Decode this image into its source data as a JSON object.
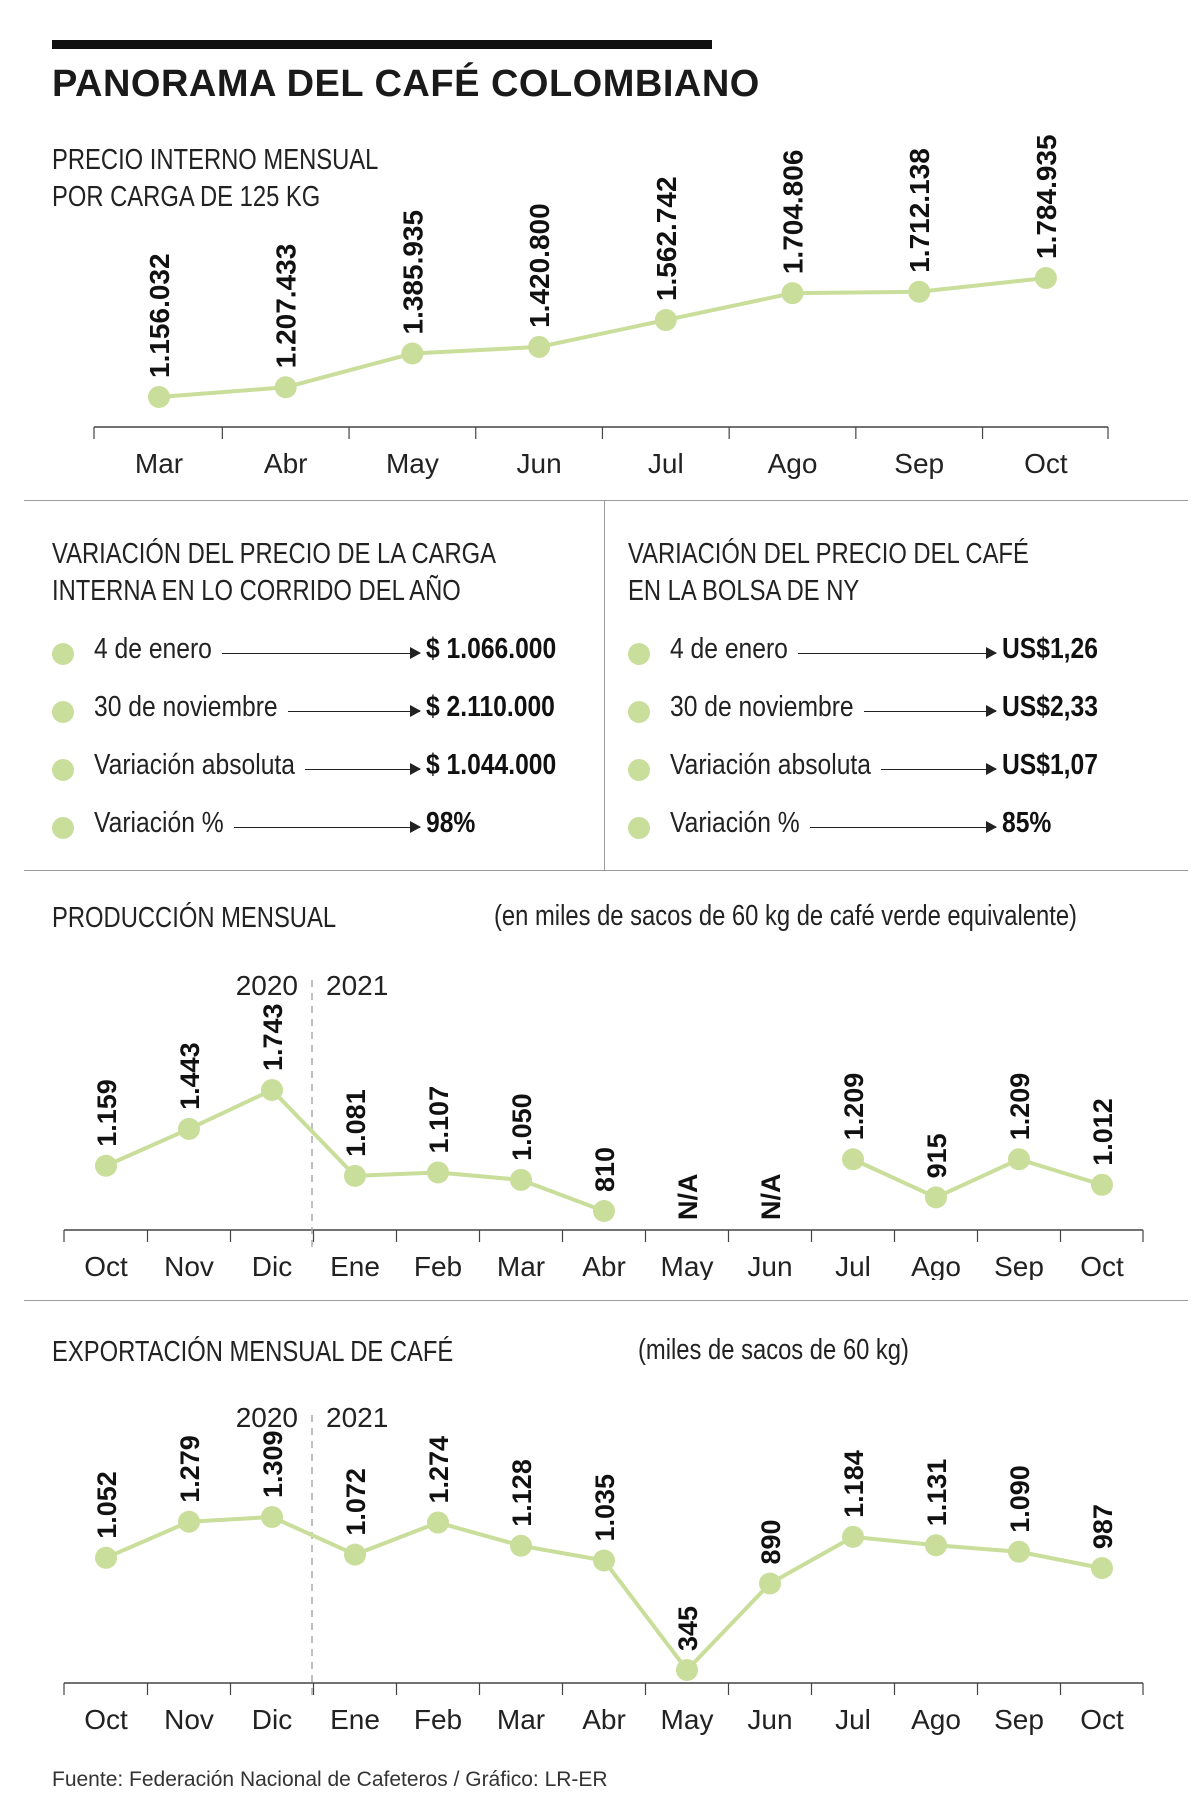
{
  "header": {
    "title": "PANORAMA DEL CAFÉ COLOMBIANO"
  },
  "colors": {
    "accent": "#c9de9a",
    "text": "#1a1a1a",
    "axis": "#444444"
  },
  "precio": {
    "title_line1": "PRECIO INTERNO MENSUAL",
    "title_line2": "POR CARGA DE 125 KG"
  },
  "variacion_carga": {
    "title_line1": "VARIACIÓN DEL PRECIO DE LA CARGA",
    "title_line2": "INTERNA EN LO CORRIDO DEL AÑO",
    "rows": [
      {
        "label": "4 de enero",
        "value": "$ 1.066.000"
      },
      {
        "label": "30 de noviembre",
        "value": "$ 2.110.000"
      },
      {
        "label": "Variación absoluta",
        "value": "$ 1.044.000"
      },
      {
        "label": "Variación %",
        "value": "98%"
      }
    ]
  },
  "variacion_ny": {
    "title_line1": "VARIACIÓN DEL PRECIO DEL CAFÉ",
    "title_line2": "EN LA BOLSA DE NY",
    "rows": [
      {
        "label": "4 de enero",
        "value": "US$1,26"
      },
      {
        "label": "30 de noviembre",
        "value": "US$2,33"
      },
      {
        "label": "Variación absoluta",
        "value": "US$1,07"
      },
      {
        "label": "Variación %",
        "value": "85%"
      }
    ]
  },
  "produccion": {
    "title": "PRODUCCIÓN MENSUAL",
    "unit": "(en miles de sacos de 60 kg de café verde equivalente)",
    "year_left": "2020",
    "year_right": "2021"
  },
  "exportacion": {
    "title": "EXPORTACIÓN MENSUAL DE CAFÉ",
    "unit": "(miles de sacos de 60 kg)",
    "year_left": "2020",
    "year_right": "2021"
  },
  "footer": {
    "source": "Fuente: Federación Nacional de Cafeteros / Gráfico: LR-ER"
  },
  "chart_data": [
    {
      "type": "line",
      "title": "PRECIO INTERNO MENSUAL POR CARGA DE 125 KG",
      "categories": [
        "Mar",
        "Abr",
        "May",
        "Jun",
        "Jul",
        "Ago",
        "Sep",
        "Oct"
      ],
      "values": [
        1156032,
        1207433,
        1385935,
        1420800,
        1562742,
        1704806,
        1712138,
        1784935
      ],
      "labels": [
        "1.156.032",
        "1.207.433",
        "1.385.935",
        "1.420.800",
        "1.562.742",
        "1.704.806",
        "1.712.138",
        "1.784.935"
      ],
      "grid": false
    },
    {
      "type": "line",
      "title": "PRODUCCIÓN MENSUAL",
      "categories": [
        "Oct",
        "Nov",
        "Dic",
        "Ene",
        "Feb",
        "Mar",
        "Abr",
        "May",
        "Jun",
        "Jul",
        "Ago",
        "Sep",
        "Oct"
      ],
      "values": [
        1159,
        1443,
        1743,
        1081,
        1107,
        1050,
        810,
        null,
        null,
        1209,
        915,
        1209,
        1012
      ],
      "labels": [
        "1.159",
        "1.443",
        "1.743",
        "1.081",
        "1.107",
        "1.050",
        "810",
        "N/A",
        "N/A",
        "1.209",
        "915",
        "1.209",
        "1.012"
      ],
      "grid": false
    },
    {
      "type": "line",
      "title": "EXPORTACIÓN MENSUAL DE CAFÉ",
      "categories": [
        "Oct",
        "Nov",
        "Dic",
        "Ene",
        "Feb",
        "Mar",
        "Abr",
        "May",
        "Jun",
        "Jul",
        "Ago",
        "Sep",
        "Oct"
      ],
      "values": [
        1052,
        1279,
        1309,
        1072,
        1274,
        1128,
        1035,
        345,
        890,
        1184,
        1131,
        1090,
        987
      ],
      "labels": [
        "1.052",
        "1.279",
        "1.309",
        "1.072",
        "1.274",
        "1.128",
        "1.035",
        "345",
        "890",
        "1.184",
        "1.131",
        "1.090",
        "987"
      ],
      "grid": false
    }
  ]
}
